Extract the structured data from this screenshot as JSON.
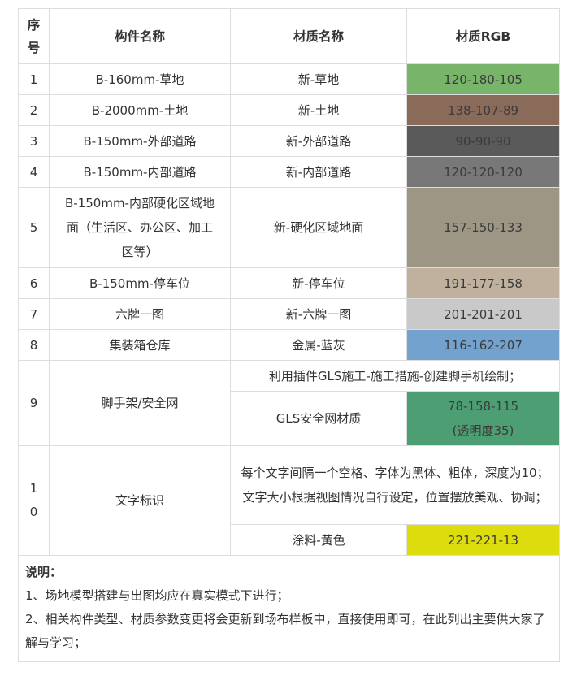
{
  "headers": {
    "seq": "序号",
    "component": "构件名称",
    "material": "材质名称",
    "rgb": "材质RGB"
  },
  "rows": [
    {
      "seq": "1",
      "component": "B-160mm-草地",
      "material": "新-草地",
      "rgb": "120-180-105",
      "color": "#78b469"
    },
    {
      "seq": "2",
      "component": "B-2000mm-土地",
      "material": "新-土地",
      "rgb": "138-107-89",
      "color": "#8a6b59"
    },
    {
      "seq": "3",
      "component": "B-150mm-外部道路",
      "material": "新-外部道路",
      "rgb": "90-90-90",
      "color": "#5a5a5a"
    },
    {
      "seq": "4",
      "component": "B-150mm-内部道路",
      "material": "新-内部道路",
      "rgb": "120-120-120",
      "color": "#787878"
    },
    {
      "seq": "5",
      "component": "B-150mm-内部硬化区域地面（生活区、办公区、加工区等）",
      "material": "新-硬化区域地面",
      "rgb": "157-150-133",
      "color": "#9d9685"
    },
    {
      "seq": "6",
      "component": "B-150mm-停车位",
      "material": "新-停车位",
      "rgb": "191-177-158",
      "color": "#bfb19e"
    },
    {
      "seq": "7",
      "component": "六牌一图",
      "material": "新-六牌一图",
      "rgb": "201-201-201",
      "color": "#c9c9c9"
    },
    {
      "seq": "8",
      "component": "集装箱仓库",
      "material": "金属-蓝灰",
      "rgb": "116-162-207",
      "color": "#74a2cf"
    },
    {
      "seq": "9",
      "component": "脚手架/安全网",
      "note": "利用插件GLS施工-施工措施-创建脚手机绘制；",
      "material": "GLS安全网材质",
      "rgb": "78-158-115",
      "rgb_note": "(透明度35)",
      "color": "#4e9e73"
    },
    {
      "seq": "10",
      "component": "文字标识",
      "note": "每个文字间隔一个空格、字体为黑体、粗体，深度为10；文字大小根据视图情况自行设定，位置摆放美观、协调；",
      "material": "涂料-黄色",
      "rgb": "221-221-13",
      "color": "#dddd0d"
    }
  ],
  "notes": {
    "title": "说明：",
    "items": [
      "1、场地模型搭建与出图均应在真实模式下进行；",
      "2、相关构件类型、材质参数变更将会更新到场布样板中，直接使用即可，在此列出主要供大家了解与学习；"
    ]
  }
}
